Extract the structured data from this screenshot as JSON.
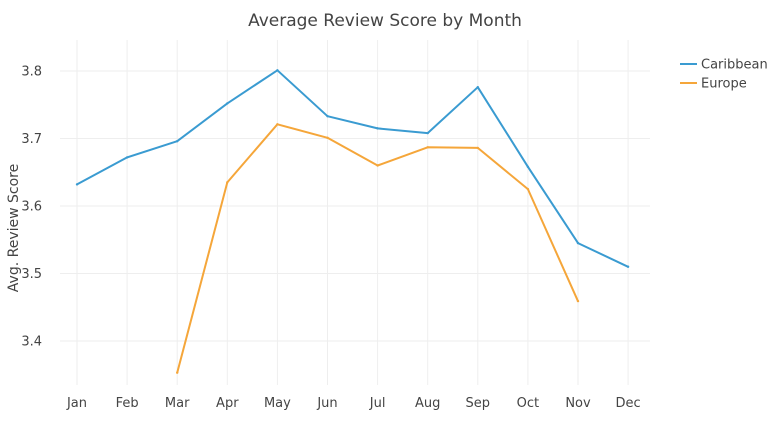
{
  "chart_data": {
    "type": "line",
    "title": "Average Review Score by Month",
    "xlabel": "",
    "ylabel": "Avg. Review Score",
    "categories": [
      "Jan",
      "Feb",
      "Mar",
      "Apr",
      "May",
      "Jun",
      "Jul",
      "Aug",
      "Sep",
      "Oct",
      "Nov",
      "Dec"
    ],
    "y_ticks": [
      "3.4",
      "3.5",
      "3.6",
      "3.7",
      "3.8"
    ],
    "ylim": [
      3.33,
      3.86
    ],
    "grid": true,
    "legend_position": "top-right",
    "series": [
      {
        "name": "Caribbean",
        "color": "#3a9bd1",
        "values": [
          3.632,
          3.672,
          3.696,
          3.752,
          3.801,
          3.733,
          3.715,
          3.708,
          3.776,
          3.658,
          3.545,
          3.51
        ]
      },
      {
        "name": "Europe",
        "color": "#f5a63a",
        "values": [
          null,
          null,
          3.353,
          3.635,
          3.721,
          3.701,
          3.66,
          3.687,
          3.686,
          3.625,
          3.459,
          null
        ]
      }
    ]
  }
}
